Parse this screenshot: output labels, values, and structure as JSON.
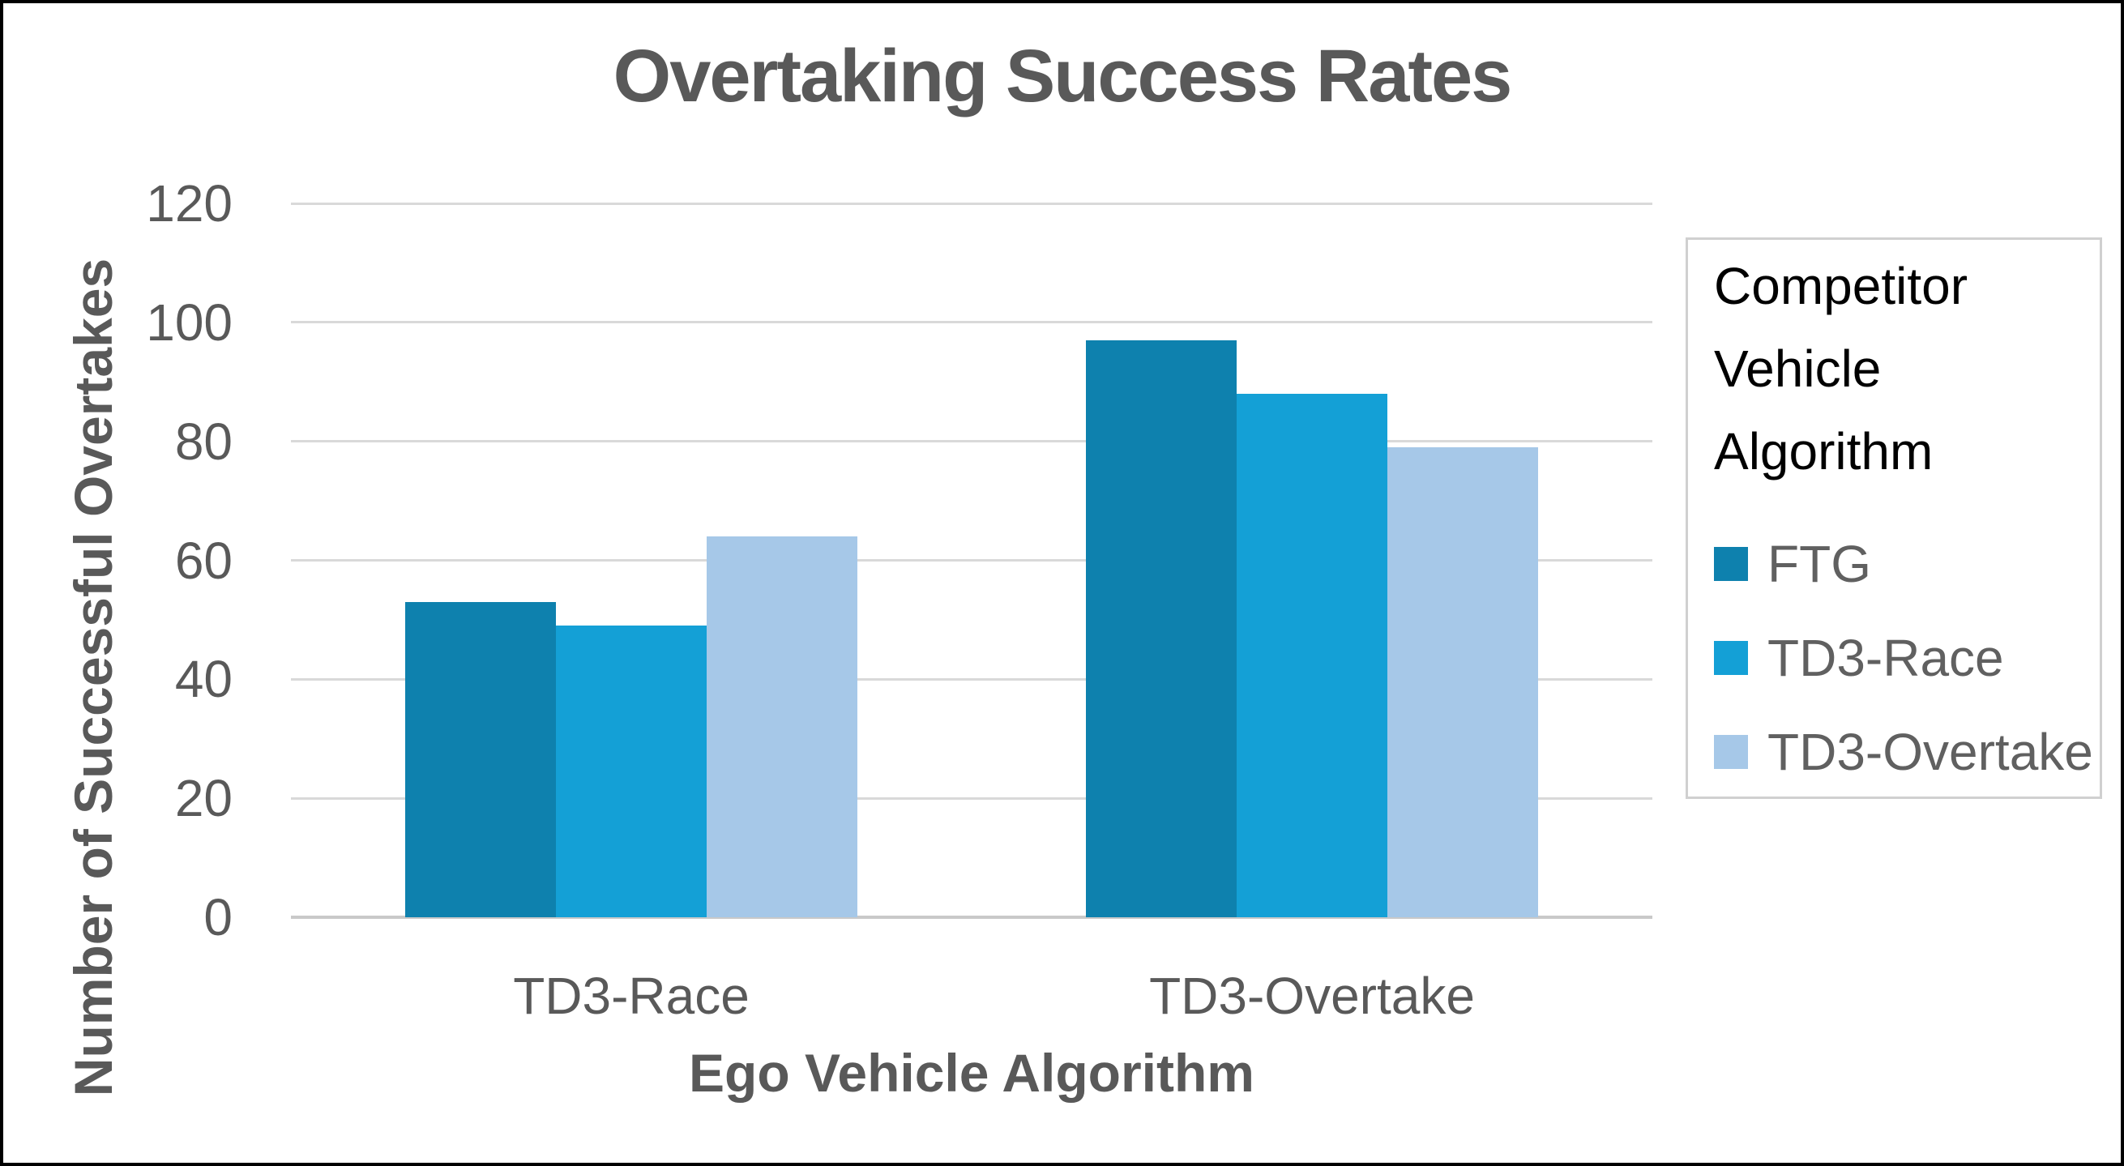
{
  "chart": {
    "title": "Overtaking Success Rates",
    "x_axis_title": "Ego Vehicle Algorithm",
    "y_axis_title": "Number of Successful Overtakes"
  },
  "legend": {
    "title": "Competitor Vehicle Algorithm"
  },
  "chart_data": {
    "type": "bar",
    "title": "Overtaking Success Rates",
    "xlabel": "Ego Vehicle Algorithm",
    "ylabel": "Number of Successful Overtakes",
    "categories": [
      "TD3-Race",
      "TD3-Overtake"
    ],
    "series": [
      {
        "name": "FTG",
        "color": "#0e81ae",
        "values": [
          53,
          97
        ]
      },
      {
        "name": "TD3-Race",
        "color": "#14a0d6",
        "values": [
          49,
          88
        ]
      },
      {
        "name": "TD3-Overtake",
        "color": "#a6c8e8",
        "values": [
          64,
          79
        ]
      }
    ],
    "ylim": [
      0,
      120
    ],
    "yticks": [
      0,
      20,
      40,
      60,
      80,
      100,
      120
    ],
    "grid": true,
    "legend_title": "Competitor Vehicle Algorithm",
    "legend_position": "right",
    "colors": {
      "gridline": "#d9d9d9",
      "axis_line": "#c9c9c9",
      "text": "#595959",
      "title_text": "#595959",
      "legend_title_text": "#000000",
      "legend_border": "#d0d0d0",
      "canvas_border": "#000000"
    }
  }
}
